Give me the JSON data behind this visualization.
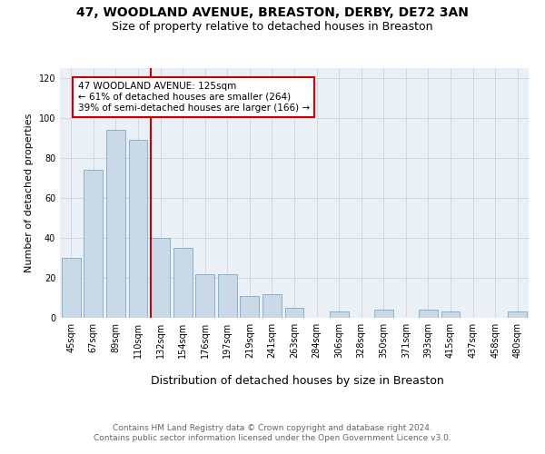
{
  "title1": "47, WOODLAND AVENUE, BREASTON, DERBY, DE72 3AN",
  "title2": "Size of property relative to detached houses in Breaston",
  "xlabel": "Distribution of detached houses by size in Breaston",
  "ylabel": "Number of detached properties",
  "bar_labels": [
    "45sqm",
    "67sqm",
    "89sqm",
    "110sqm",
    "132sqm",
    "154sqm",
    "176sqm",
    "197sqm",
    "219sqm",
    "241sqm",
    "263sqm",
    "284sqm",
    "306sqm",
    "328sqm",
    "350sqm",
    "371sqm",
    "393sqm",
    "415sqm",
    "437sqm",
    "458sqm",
    "480sqm"
  ],
  "bar_values": [
    30,
    74,
    94,
    89,
    40,
    35,
    22,
    22,
    11,
    12,
    5,
    0,
    3,
    0,
    4,
    0,
    4,
    3,
    0,
    0,
    3
  ],
  "bar_color": "#c9d9e8",
  "bar_edge_color": "#7baac7",
  "vline_color": "#cc0000",
  "annotation_text": "47 WOODLAND AVENUE: 125sqm\n← 61% of detached houses are smaller (264)\n39% of semi-detached houses are larger (166) →",
  "annotation_box_color": "#ffffff",
  "annotation_box_edge": "#cc0000",
  "ylim": [
    0,
    125
  ],
  "yticks": [
    0,
    20,
    40,
    60,
    80,
    100,
    120
  ],
  "grid_color": "#d0d8e4",
  "background_color": "#eaf0f6",
  "footer": "Contains HM Land Registry data © Crown copyright and database right 2024.\nContains public sector information licensed under the Open Government Licence v3.0.",
  "title1_fontsize": 10,
  "title2_fontsize": 9,
  "xlabel_fontsize": 9,
  "ylabel_fontsize": 8,
  "tick_fontsize": 7,
  "footer_fontsize": 6.5,
  "ann_fontsize": 7.5
}
